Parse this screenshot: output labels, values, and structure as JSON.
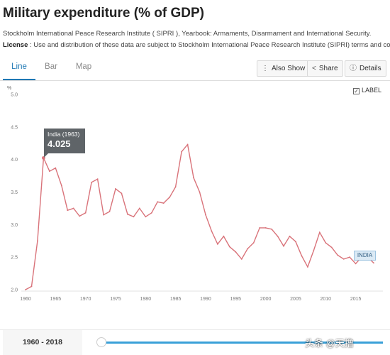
{
  "header": {
    "title": "Military expenditure (% of GDP)",
    "source": "Stockholm International Peace Research Institute ( SIPRI ), Yearbook: Armaments, Disarmament and International Security.",
    "license_label": "License",
    "license_text": " : Use and distribution of these data are subject to Stockholm International Peace Research Institute (SIPRI) terms and cond"
  },
  "tabs": [
    {
      "label": "Line",
      "active": true
    },
    {
      "label": "Bar",
      "active": false
    },
    {
      "label": "Map",
      "active": false
    }
  ],
  "toolbar": {
    "also_show": "Also Show",
    "also_show_icon": "ellipsis-icon",
    "share": "Share",
    "share_icon": "share-icon",
    "details": "Details",
    "details_icon": "info-icon"
  },
  "label_toggle": {
    "text": "LABEL",
    "checked": true
  },
  "tooltip": {
    "name": "India (1963)",
    "value": "4.025"
  },
  "series_tag": "INDIA",
  "range": {
    "label": "1960 - 2018"
  },
  "watermark": "头条 @天撸",
  "chart_data": {
    "type": "line",
    "ylabel": "%",
    "ylim": [
      2.0,
      5.0
    ],
    "yticks": [
      "2.0",
      "2.5",
      "3.0",
      "3.5",
      "4.0",
      "4.5",
      "5.0"
    ],
    "xlim": [
      1960,
      2018
    ],
    "xticks": [
      "1960",
      "1965",
      "1970",
      "1975",
      "1980",
      "1985",
      "1990",
      "1995",
      "2000",
      "2005",
      "2010",
      "2015"
    ],
    "grid": false,
    "color": "#d9737a",
    "series": [
      {
        "name": "INDIA",
        "x": [
          1960,
          1961,
          1962,
          1963,
          1964,
          1965,
          1966,
          1967,
          1968,
          1969,
          1970,
          1971,
          1972,
          1973,
          1974,
          1975,
          1976,
          1977,
          1978,
          1979,
          1980,
          1981,
          1982,
          1983,
          1984,
          1985,
          1986,
          1987,
          1988,
          1989,
          1990,
          1991,
          1992,
          1993,
          1994,
          1995,
          1996,
          1997,
          1998,
          1999,
          2000,
          2001,
          2002,
          2003,
          2004,
          2005,
          2006,
          2007,
          2008,
          2009,
          2010,
          2011,
          2012,
          2013,
          2014,
          2015,
          2016,
          2017,
          2018
        ],
        "y": [
          2.0,
          2.05,
          2.75,
          4.025,
          3.82,
          3.87,
          3.6,
          3.22,
          3.25,
          3.13,
          3.18,
          3.65,
          3.7,
          3.15,
          3.2,
          3.55,
          3.48,
          3.16,
          3.12,
          3.25,
          3.12,
          3.18,
          3.35,
          3.33,
          3.42,
          3.58,
          4.12,
          4.23,
          3.72,
          3.5,
          3.15,
          2.9,
          2.7,
          2.82,
          2.66,
          2.58,
          2.47,
          2.63,
          2.72,
          2.95,
          2.95,
          2.93,
          2.82,
          2.67,
          2.82,
          2.74,
          2.52,
          2.35,
          2.6,
          2.88,
          2.72,
          2.65,
          2.53,
          2.47,
          2.5,
          2.4,
          2.5,
          2.5,
          2.41
        ]
      }
    ]
  }
}
